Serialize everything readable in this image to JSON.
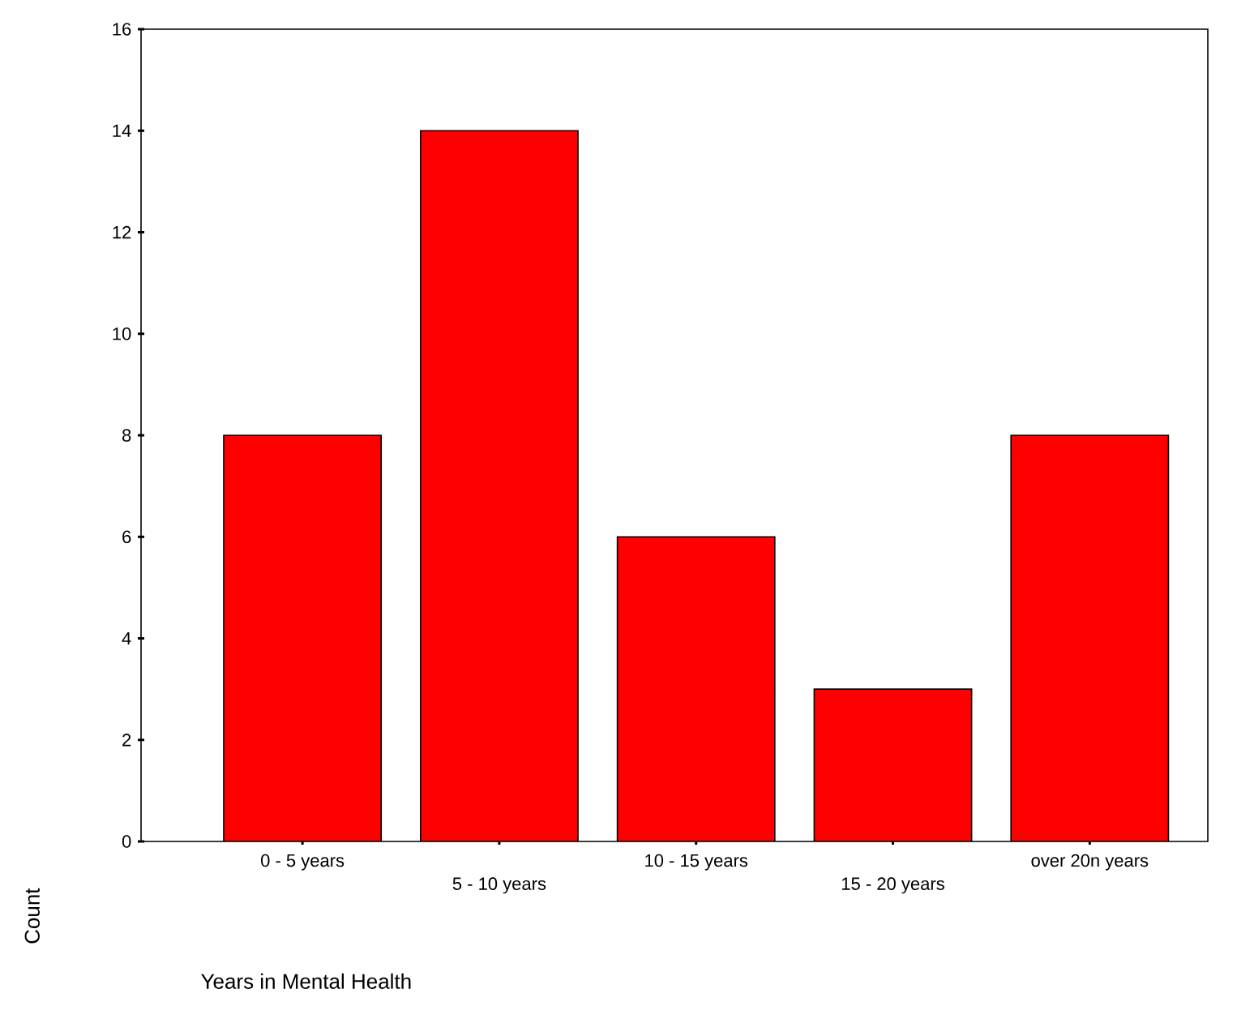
{
  "chart_data": {
    "type": "bar",
    "xlabel": "Years in Mental Health",
    "ylabel": "Count",
    "categories": [
      "0 - 5 years",
      "5 - 10 years",
      "10 - 15 years",
      "15 - 20 years",
      "over 20n years"
    ],
    "values": [
      8,
      14,
      6,
      3,
      8
    ],
    "color": "#ff0000",
    "ylim": [
      0,
      16
    ],
    "yticks": [
      0,
      2,
      4,
      6,
      8,
      10,
      12,
      14,
      16
    ]
  }
}
